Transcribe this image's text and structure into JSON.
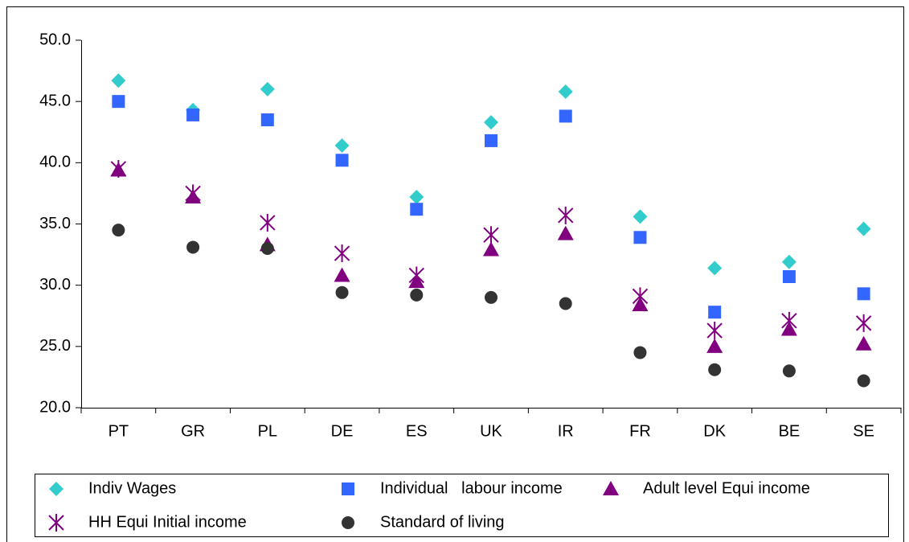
{
  "chart_data": {
    "type": "scatter",
    "categories": [
      "PT",
      "GR",
      "PL",
      "DE",
      "ES",
      "UK",
      "IR",
      "FR",
      "DK",
      "BE",
      "SE"
    ],
    "series": [
      {
        "name": "Indiv Wages",
        "marker": "diamond",
        "color": "#33cccc",
        "values": [
          46.7,
          44.3,
          46.0,
          41.4,
          37.2,
          43.3,
          45.8,
          35.6,
          31.4,
          31.9,
          34.6
        ]
      },
      {
        "name": "Individual   labour income",
        "marker": "square",
        "color": "#3366ff",
        "values": [
          45.0,
          43.9,
          43.5,
          40.2,
          36.2,
          41.8,
          43.8,
          33.9,
          27.8,
          30.7,
          29.3
        ]
      },
      {
        "name": "Adult level Equi income",
        "marker": "triangle",
        "color": "#800080",
        "values": [
          39.4,
          37.2,
          33.3,
          30.8,
          30.3,
          32.9,
          34.2,
          28.4,
          25.0,
          26.4,
          25.2
        ]
      },
      {
        "name": "HH Equi Initial income",
        "marker": "star",
        "color": "#800080",
        "values": [
          39.5,
          37.5,
          35.1,
          32.6,
          30.8,
          34.1,
          35.7,
          29.1,
          26.3,
          27.1,
          26.9
        ]
      },
      {
        "name": "Standard of living",
        "marker": "circle",
        "color": "#333333",
        "values": [
          34.5,
          33.1,
          33.0,
          29.4,
          29.2,
          29.0,
          28.5,
          24.5,
          23.1,
          23.0,
          22.2
        ]
      }
    ],
    "ylim": [
      20,
      50
    ],
    "yticks": [
      {
        "value": 20,
        "label": "20.0"
      },
      {
        "value": 25,
        "label": "25.0"
      },
      {
        "value": 30,
        "label": "30.0"
      },
      {
        "value": 35,
        "label": "35.0"
      },
      {
        "value": 40,
        "label": "40.0"
      },
      {
        "value": 45,
        "label": "45.0"
      },
      {
        "value": 50,
        "label": "50.0"
      }
    ],
    "legend": "bottom"
  }
}
